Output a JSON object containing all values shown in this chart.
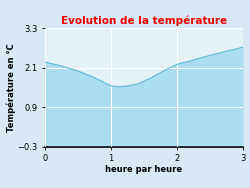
{
  "title": "Evolution de la température",
  "xlabel": "heure par heure",
  "ylabel": "Température en °C",
  "x": [
    0,
    0.25,
    0.5,
    0.75,
    1.0,
    1.1,
    1.2,
    1.4,
    1.6,
    1.8,
    2.0,
    2.2,
    2.4,
    2.6,
    2.8,
    3.0
  ],
  "y": [
    2.27,
    2.15,
    2.0,
    1.8,
    1.55,
    1.52,
    1.53,
    1.6,
    1.78,
    2.0,
    2.2,
    2.3,
    2.42,
    2.52,
    2.62,
    2.72
  ],
  "ylim": [
    -0.3,
    3.3
  ],
  "xlim": [
    0,
    3
  ],
  "yticks": [
    -0.3,
    0.9,
    2.1,
    3.3
  ],
  "xticks": [
    0,
    1,
    2,
    3
  ],
  "fill_color": "#aaddf0",
  "line_color": "#60bcd8",
  "title_color": "#ee0000",
  "bg_color": "#d8e8f4",
  "plot_bg_color": "#e4f2f8",
  "grid_color": "#ffffff",
  "title_fontsize": 7.5,
  "label_fontsize": 6.0,
  "tick_fontsize": 6.0
}
